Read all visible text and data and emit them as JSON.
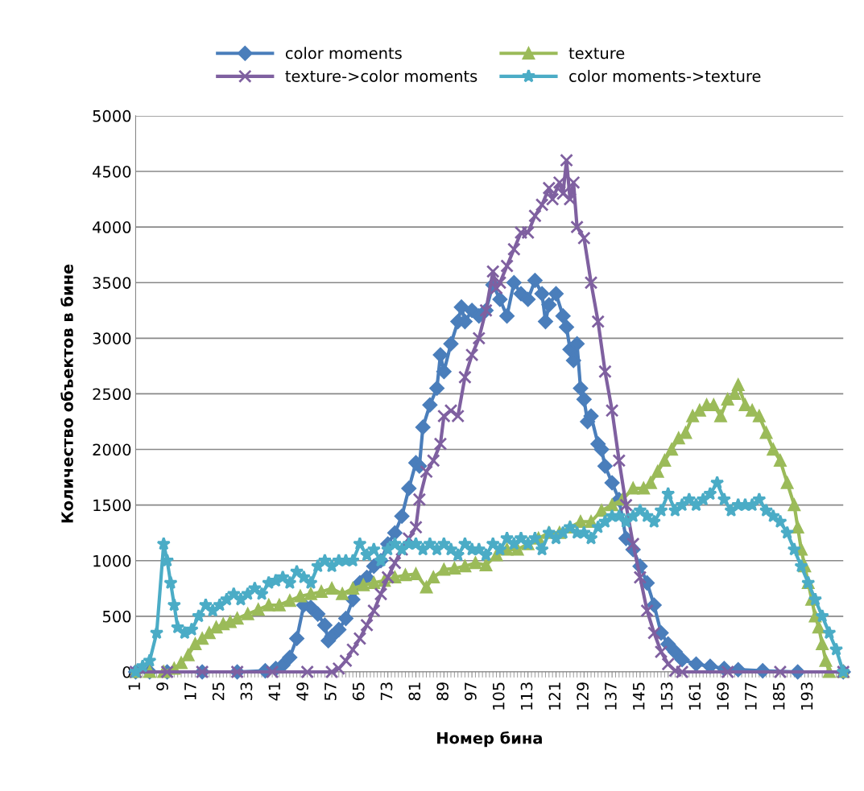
{
  "chart_data": {
    "type": "line",
    "xlabel": "Номер бина",
    "ylabel": "Количество объектов в бине",
    "xlim": [
      1,
      203
    ],
    "xticks": [
      1,
      9,
      17,
      25,
      33,
      41,
      49,
      57,
      65,
      73,
      81,
      89,
      97,
      105,
      113,
      121,
      129,
      137,
      145,
      153,
      161,
      169,
      177,
      185,
      193
    ],
    "ylim": [
      0,
      5000
    ],
    "yticks": [
      0,
      500,
      1000,
      1500,
      2000,
      2500,
      3000,
      3500,
      4000,
      4500,
      5000
    ],
    "grid": "y",
    "legend": "top",
    "line_style": "solid",
    "series": [
      {
        "name": "color moments",
        "color": "#4a7ebb",
        "marker": "diamond",
        "x": [
          1,
          5,
          10,
          20,
          30,
          38,
          41,
          43,
          45,
          47,
          49,
          51,
          53,
          55,
          56,
          57,
          59,
          61,
          63,
          65,
          67,
          69,
          71,
          73,
          75,
          77,
          79,
          81,
          82,
          83,
          85,
          87,
          88,
          89,
          91,
          93,
          94,
          95,
          97,
          99,
          101,
          103,
          105,
          107,
          109,
          111,
          113,
          115,
          117,
          118,
          119,
          121,
          123,
          124,
          125,
          126,
          127,
          128,
          129,
          130,
          131,
          133,
          134,
          135,
          137,
          139,
          141,
          143,
          145,
          147,
          149,
          151,
          153,
          155,
          157,
          161,
          165,
          169,
          173,
          180,
          190,
          203
        ],
        "values": [
          0,
          0,
          0,
          0,
          0,
          10,
          30,
          60,
          130,
          300,
          600,
          580,
          520,
          420,
          280,
          320,
          380,
          480,
          650,
          800,
          850,
          950,
          1000,
          1150,
          1250,
          1400,
          1650,
          1880,
          1850,
          2200,
          2400,
          2550,
          2850,
          2700,
          2950,
          3150,
          3280,
          3150,
          3250,
          3200,
          3250,
          3480,
          3350,
          3200,
          3500,
          3400,
          3350,
          3520,
          3400,
          3150,
          3300,
          3400,
          3200,
          3100,
          2900,
          2800,
          2950,
          2550,
          2450,
          2250,
          2300,
          2050,
          2000,
          1850,
          1700,
          1550,
          1200,
          1100,
          950,
          800,
          600,
          350,
          250,
          180,
          110,
          70,
          50,
          30,
          20,
          10,
          0,
          0
        ]
      },
      {
        "name": "texture",
        "color": "#9bbb59",
        "marker": "triangle",
        "x": [
          1,
          5,
          9,
          12,
          14,
          16,
          18,
          20,
          22,
          24,
          26,
          28,
          30,
          33,
          36,
          39,
          42,
          45,
          48,
          51,
          54,
          57,
          60,
          63,
          66,
          69,
          72,
          75,
          78,
          81,
          84,
          86,
          89,
          92,
          95,
          98,
          101,
          104,
          107,
          110,
          113,
          116,
          119,
          122,
          125,
          128,
          131,
          134,
          137,
          140,
          143,
          146,
          148,
          150,
          152,
          154,
          156,
          158,
          160,
          162,
          164,
          166,
          168,
          170,
          172,
          173,
          175,
          177,
          179,
          181,
          183,
          185,
          187,
          189,
          190,
          191,
          192,
          193,
          194,
          195,
          196,
          197,
          198,
          199,
          203
        ],
        "values": [
          0,
          0,
          0,
          30,
          80,
          150,
          250,
          300,
          350,
          400,
          430,
          450,
          480,
          520,
          560,
          600,
          600,
          640,
          680,
          700,
          720,
          750,
          700,
          750,
          780,
          800,
          820,
          850,
          870,
          880,
          760,
          850,
          920,
          930,
          950,
          980,
          960,
          1050,
          1100,
          1100,
          1150,
          1200,
          1250,
          1250,
          1300,
          1350,
          1350,
          1450,
          1500,
          1550,
          1650,
          1650,
          1700,
          1800,
          1900,
          2000,
          2100,
          2150,
          2300,
          2350,
          2400,
          2400,
          2300,
          2450,
          2500,
          2580,
          2400,
          2350,
          2300,
          2150,
          2000,
          1900,
          1700,
          1500,
          1300,
          1100,
          950,
          800,
          650,
          500,
          400,
          250,
          100,
          0,
          0
        ]
      },
      {
        "name": "texture->color moments",
        "color": "#7f60a0",
        "marker": "cross",
        "x": [
          1,
          10,
          20,
          30,
          40,
          50,
          57,
          59,
          61,
          63,
          65,
          67,
          69,
          71,
          73,
          75,
          77,
          79,
          81,
          82,
          84,
          86,
          88,
          89,
          91,
          93,
          95,
          97,
          99,
          101,
          103,
          104,
          105,
          107,
          109,
          111,
          113,
          115,
          117,
          119,
          120,
          122,
          123,
          124,
          125,
          126,
          127,
          129,
          131,
          133,
          135,
          137,
          139,
          141,
          143,
          145,
          147,
          149,
          151,
          153,
          155,
          157,
          170,
          185,
          203
        ],
        "values": [
          0,
          0,
          0,
          0,
          0,
          0,
          0,
          30,
          100,
          200,
          300,
          420,
          550,
          700,
          850,
          980,
          1100,
          1200,
          1300,
          1550,
          1800,
          1900,
          2050,
          2300,
          2350,
          2300,
          2650,
          2850,
          3000,
          3250,
          3600,
          3450,
          3500,
          3650,
          3800,
          3950,
          3950,
          4100,
          4200,
          4350,
          4250,
          4400,
          4300,
          4600,
          4250,
          4400,
          4000,
          3900,
          3500,
          3150,
          2700,
          2350,
          1900,
          1500,
          1150,
          850,
          550,
          350,
          180,
          70,
          10,
          0,
          0,
          0,
          0
        ]
      },
      {
        "name": "color moments->texture",
        "color": "#4bacc6",
        "marker": "star",
        "x": [
          1,
          3,
          5,
          7,
          9,
          10,
          11,
          12,
          13,
          15,
          17,
          19,
          21,
          23,
          25,
          27,
          29,
          31,
          33,
          35,
          37,
          39,
          41,
          43,
          45,
          47,
          49,
          51,
          53,
          55,
          57,
          59,
          61,
          63,
          65,
          67,
          69,
          71,
          73,
          75,
          77,
          79,
          81,
          83,
          85,
          87,
          89,
          91,
          93,
          95,
          97,
          99,
          101,
          103,
          105,
          107,
          109,
          111,
          113,
          115,
          117,
          119,
          121,
          123,
          125,
          127,
          129,
          131,
          133,
          135,
          137,
          139,
          141,
          143,
          145,
          147,
          149,
          151,
          153,
          155,
          157,
          159,
          161,
          163,
          165,
          167,
          169,
          171,
          173,
          175,
          177,
          179,
          181,
          183,
          185,
          187,
          189,
          191,
          193,
          195,
          197,
          199,
          201,
          203
        ],
        "values": [
          0,
          50,
          100,
          350,
          1150,
          1000,
          800,
          600,
          400,
          350,
          380,
          500,
          600,
          550,
          600,
          650,
          700,
          650,
          700,
          750,
          700,
          800,
          820,
          850,
          800,
          900,
          850,
          800,
          950,
          1000,
          950,
          1000,
          1000,
          1000,
          1150,
          1050,
          1100,
          1000,
          1100,
          1150,
          1100,
          1150,
          1150,
          1100,
          1150,
          1100,
          1150,
          1100,
          1050,
          1150,
          1100,
          1100,
          1050,
          1150,
          1100,
          1200,
          1150,
          1200,
          1150,
          1200,
          1100,
          1250,
          1200,
          1250,
          1300,
          1250,
          1250,
          1200,
          1300,
          1350,
          1400,
          1400,
          1350,
          1400,
          1450,
          1400,
          1350,
          1450,
          1600,
          1450,
          1500,
          1550,
          1500,
          1550,
          1600,
          1700,
          1550,
          1450,
          1500,
          1500,
          1500,
          1550,
          1450,
          1400,
          1350,
          1250,
          1100,
          950,
          800,
          650,
          500,
          350,
          200,
          0
        ]
      }
    ]
  }
}
